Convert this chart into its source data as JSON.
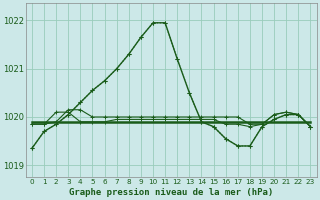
{
  "title": "Graphe pression niveau de la mer (hPa)",
  "bg_color": "#cce8e8",
  "grid_color": "#99ccbb",
  "line_color": "#1a5c1a",
  "xlim": [
    -0.5,
    23.5
  ],
  "ylim": [
    1018.75,
    1022.35
  ],
  "yticks": [
    1019,
    1020,
    1021,
    1022
  ],
  "xticks": [
    0,
    1,
    2,
    3,
    4,
    5,
    6,
    7,
    8,
    9,
    10,
    11,
    12,
    13,
    14,
    15,
    16,
    17,
    18,
    19,
    20,
    21,
    22,
    23
  ],
  "series_main": [
    1019.35,
    1019.7,
    1019.85,
    1020.05,
    1020.3,
    1020.55,
    1020.75,
    1021.0,
    1021.3,
    1021.65,
    1021.95,
    1021.95,
    1021.2,
    1020.5,
    1019.9,
    1019.8,
    1019.55,
    1019.4,
    1019.4,
    1019.8,
    1019.95,
    1020.05,
    1020.05,
    1019.8
  ],
  "series_dotted": [
    1019.35,
    1019.7,
    1019.85,
    1020.05,
    1020.3,
    1020.55,
    1020.75,
    1021.0,
    1021.3,
    1021.65,
    1021.95,
    1021.95,
    1021.2,
    1020.5,
    1019.9,
    1019.8,
    1019.55,
    1019.4,
    1019.4,
    1019.8,
    1019.95,
    1020.05,
    1020.05,
    1019.8
  ],
  "series_flat1": [
    1019.85,
    1019.85,
    1020.1,
    1020.1,
    1019.9,
    1019.9,
    1019.9,
    1019.95,
    1019.95,
    1019.95,
    1019.95,
    1019.95,
    1019.95,
    1019.95,
    1019.95,
    1019.95,
    1019.85,
    1019.85,
    1019.8,
    1019.85,
    1020.05,
    1020.1,
    1020.05,
    1019.8
  ],
  "series_flat2": [
    1019.85,
    1019.85,
    1019.9,
    1020.15,
    1020.15,
    1020.0,
    1020.0,
    1020.0,
    1020.0,
    1020.0,
    1020.0,
    1020.0,
    1020.0,
    1020.0,
    1020.0,
    1020.0,
    1020.0,
    1020.0,
    1019.85,
    1019.85,
    1020.05,
    1020.1,
    1020.05,
    1019.8
  ],
  "series_bold_flat": [
    1019.9,
    1019.9,
    1019.9,
    1019.9,
    1019.9,
    1019.9,
    1019.9,
    1019.9,
    1019.9,
    1019.9,
    1019.9,
    1019.9,
    1019.9,
    1019.9,
    1019.9,
    1019.9,
    1019.9,
    1019.9,
    1019.9,
    1019.9,
    1019.9,
    1019.9,
    1019.9,
    1019.9
  ]
}
